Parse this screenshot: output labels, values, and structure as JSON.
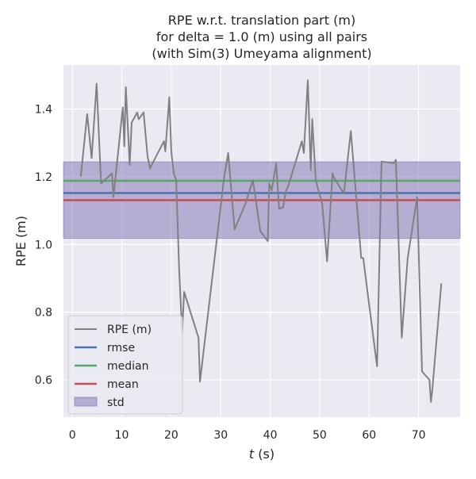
{
  "chart_data": {
    "type": "line",
    "title_lines": [
      "RPE w.r.t. translation part (m)",
      "for delta = 1.0 (m) using all pairs",
      "(with Sim(3) Umeyama alignment)"
    ],
    "xlabel_italic": "t",
    "xlabel_rest": " (s)",
    "ylabel": "RPE (m)",
    "xlim": [
      -1.8,
      78.4
    ],
    "ylim": [
      0.49,
      1.53
    ],
    "xticks": [
      0,
      10,
      20,
      30,
      40,
      50,
      60,
      70
    ],
    "yticks": [
      0.6,
      0.8,
      1.0,
      1.2,
      1.4
    ],
    "ytick_labels": [
      "0.6",
      "0.8",
      "1.0",
      "1.2",
      "1.4"
    ],
    "grid": true,
    "legend_position": "lower-left",
    "series": [
      {
        "name": "RPE (m)",
        "color": "#808080",
        "x": [
          1.7,
          3.0,
          3.9,
          4.9,
          5.8,
          8.0,
          8.3,
          10.2,
          10.5,
          10.8,
          11.6,
          12.0,
          13.1,
          13.4,
          14.4,
          15.2,
          15.7,
          18.5,
          18.8,
          19.6,
          20.0,
          20.5,
          21.0,
          21.6,
          22.2,
          22.6,
          25.5,
          25.8,
          30.7,
          31.5,
          32.8,
          35.0,
          36.5,
          38.0,
          39.5,
          39.8,
          40.3,
          41.2,
          41.8,
          42.6,
          43.2,
          43.6,
          46.4,
          46.8,
          47.6,
          48.2,
          48.5,
          49.2,
          50.5,
          51.5,
          52.6,
          52.8,
          54.9,
          56.3,
          58.4,
          58.8,
          61.6,
          62.5,
          65.0,
          65.4,
          66.6,
          67.8,
          69.7,
          70.7,
          72.2,
          72.5,
          72.8,
          74.6
        ],
        "y": [
          1.2,
          1.385,
          1.255,
          1.475,
          1.18,
          1.21,
          1.14,
          1.405,
          1.29,
          1.465,
          1.235,
          1.36,
          1.39,
          1.37,
          1.39,
          1.26,
          1.225,
          1.305,
          1.275,
          1.435,
          1.275,
          1.21,
          1.19,
          0.92,
          0.74,
          0.86,
          0.725,
          0.595,
          1.2,
          1.27,
          1.045,
          1.12,
          1.19,
          1.04,
          1.01,
          1.18,
          1.16,
          1.24,
          1.105,
          1.11,
          1.16,
          1.17,
          1.305,
          1.27,
          1.485,
          1.22,
          1.37,
          1.19,
          1.12,
          0.95,
          1.21,
          1.2,
          1.15,
          1.335,
          0.96,
          0.96,
          0.64,
          1.245,
          1.24,
          1.25,
          0.725,
          0.96,
          1.14,
          0.625,
          0.6,
          0.535,
          0.575,
          0.885
        ]
      },
      {
        "name": "rmse",
        "color": "#4c72b0",
        "value": 1.152
      },
      {
        "name": "median",
        "color": "#55a868",
        "value": 1.188
      },
      {
        "name": "mean",
        "color": "#c44e52",
        "value": 1.131
      },
      {
        "name": "std",
        "color": "#8172b2",
        "range": [
          1.018,
          1.244
        ]
      }
    ]
  }
}
